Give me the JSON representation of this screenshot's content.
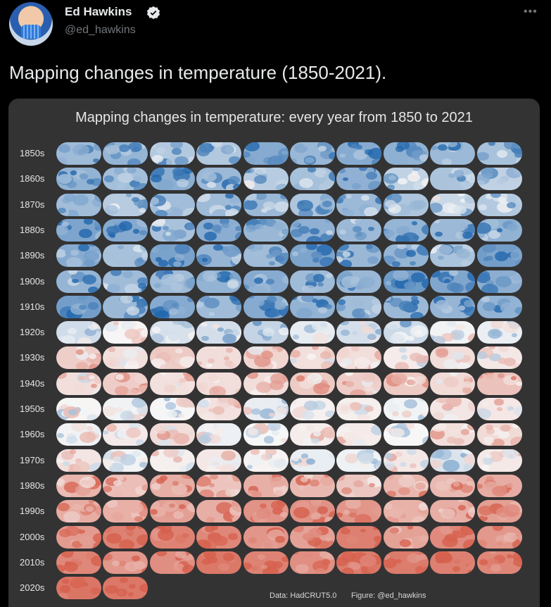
{
  "header": {
    "name": "Ed Hawkins",
    "handle": "@ed_hawkins",
    "more_icon": "ellipsis-icon",
    "verified_icon": "verified-badge-icon"
  },
  "tweet": {
    "text": "Mapping changes in temperature (1850-2021)."
  },
  "figure": {
    "title": "Mapping changes in temperature: every year from 1850 to 2021",
    "rows": [
      "1850s",
      "1860s",
      "1870s",
      "1880s",
      "1890s",
      "1900s",
      "1910s",
      "1920s",
      "1930s",
      "1940s",
      "1950s",
      "1960s",
      "1970s",
      "1980s",
      "1990s",
      "2000s",
      "2010s",
      "2020s"
    ],
    "maps_in_last_row": 2,
    "credit_data": "Data: HadCRUT5.0",
    "credit_figure": "Figure: @ed_hawkins",
    "colors": {
      "cold": "#2166ac",
      "neutral": "#f7f7f7",
      "warm": "#d6604d"
    },
    "decade_warmth": [
      -0.55,
      -0.5,
      -0.45,
      -0.6,
      -0.65,
      -0.7,
      -0.65,
      -0.15,
      0.25,
      0.35,
      0.05,
      0.1,
      0.0,
      0.55,
      0.75,
      0.9,
      1.0,
      1.0
    ]
  }
}
